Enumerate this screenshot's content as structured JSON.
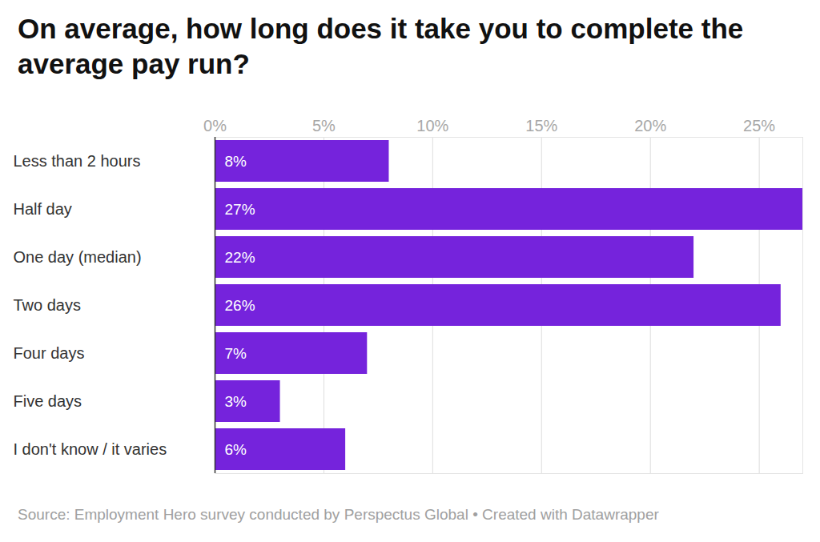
{
  "chart_data": {
    "type": "bar",
    "orientation": "horizontal",
    "title": "On average, how long does it take you to complete the average pay run?",
    "caption": "Source: Employment Hero survey conducted by Perspectus Global • Created with Datawrapper",
    "categories": [
      "Less than 2 hours",
      "Half day",
      "One day (median)",
      "Two days",
      "Four days",
      "Five days",
      "I don't know / it varies"
    ],
    "values": [
      8,
      27,
      22,
      26,
      7,
      3,
      6
    ],
    "value_labels": [
      "8%",
      "27%",
      "22%",
      "26%",
      "7%",
      "3%",
      "6%"
    ],
    "color": "#7523dc",
    "xlim": [
      0,
      27
    ],
    "xticks": [
      {
        "value": 0,
        "label": "0%"
      },
      {
        "value": 5,
        "label": "5%"
      },
      {
        "value": 10,
        "label": "10%"
      },
      {
        "value": 15,
        "label": "15%"
      },
      {
        "value": 20,
        "label": "20%"
      },
      {
        "value": 25,
        "label": "25%"
      }
    ],
    "grid": true,
    "data_labels": true
  }
}
